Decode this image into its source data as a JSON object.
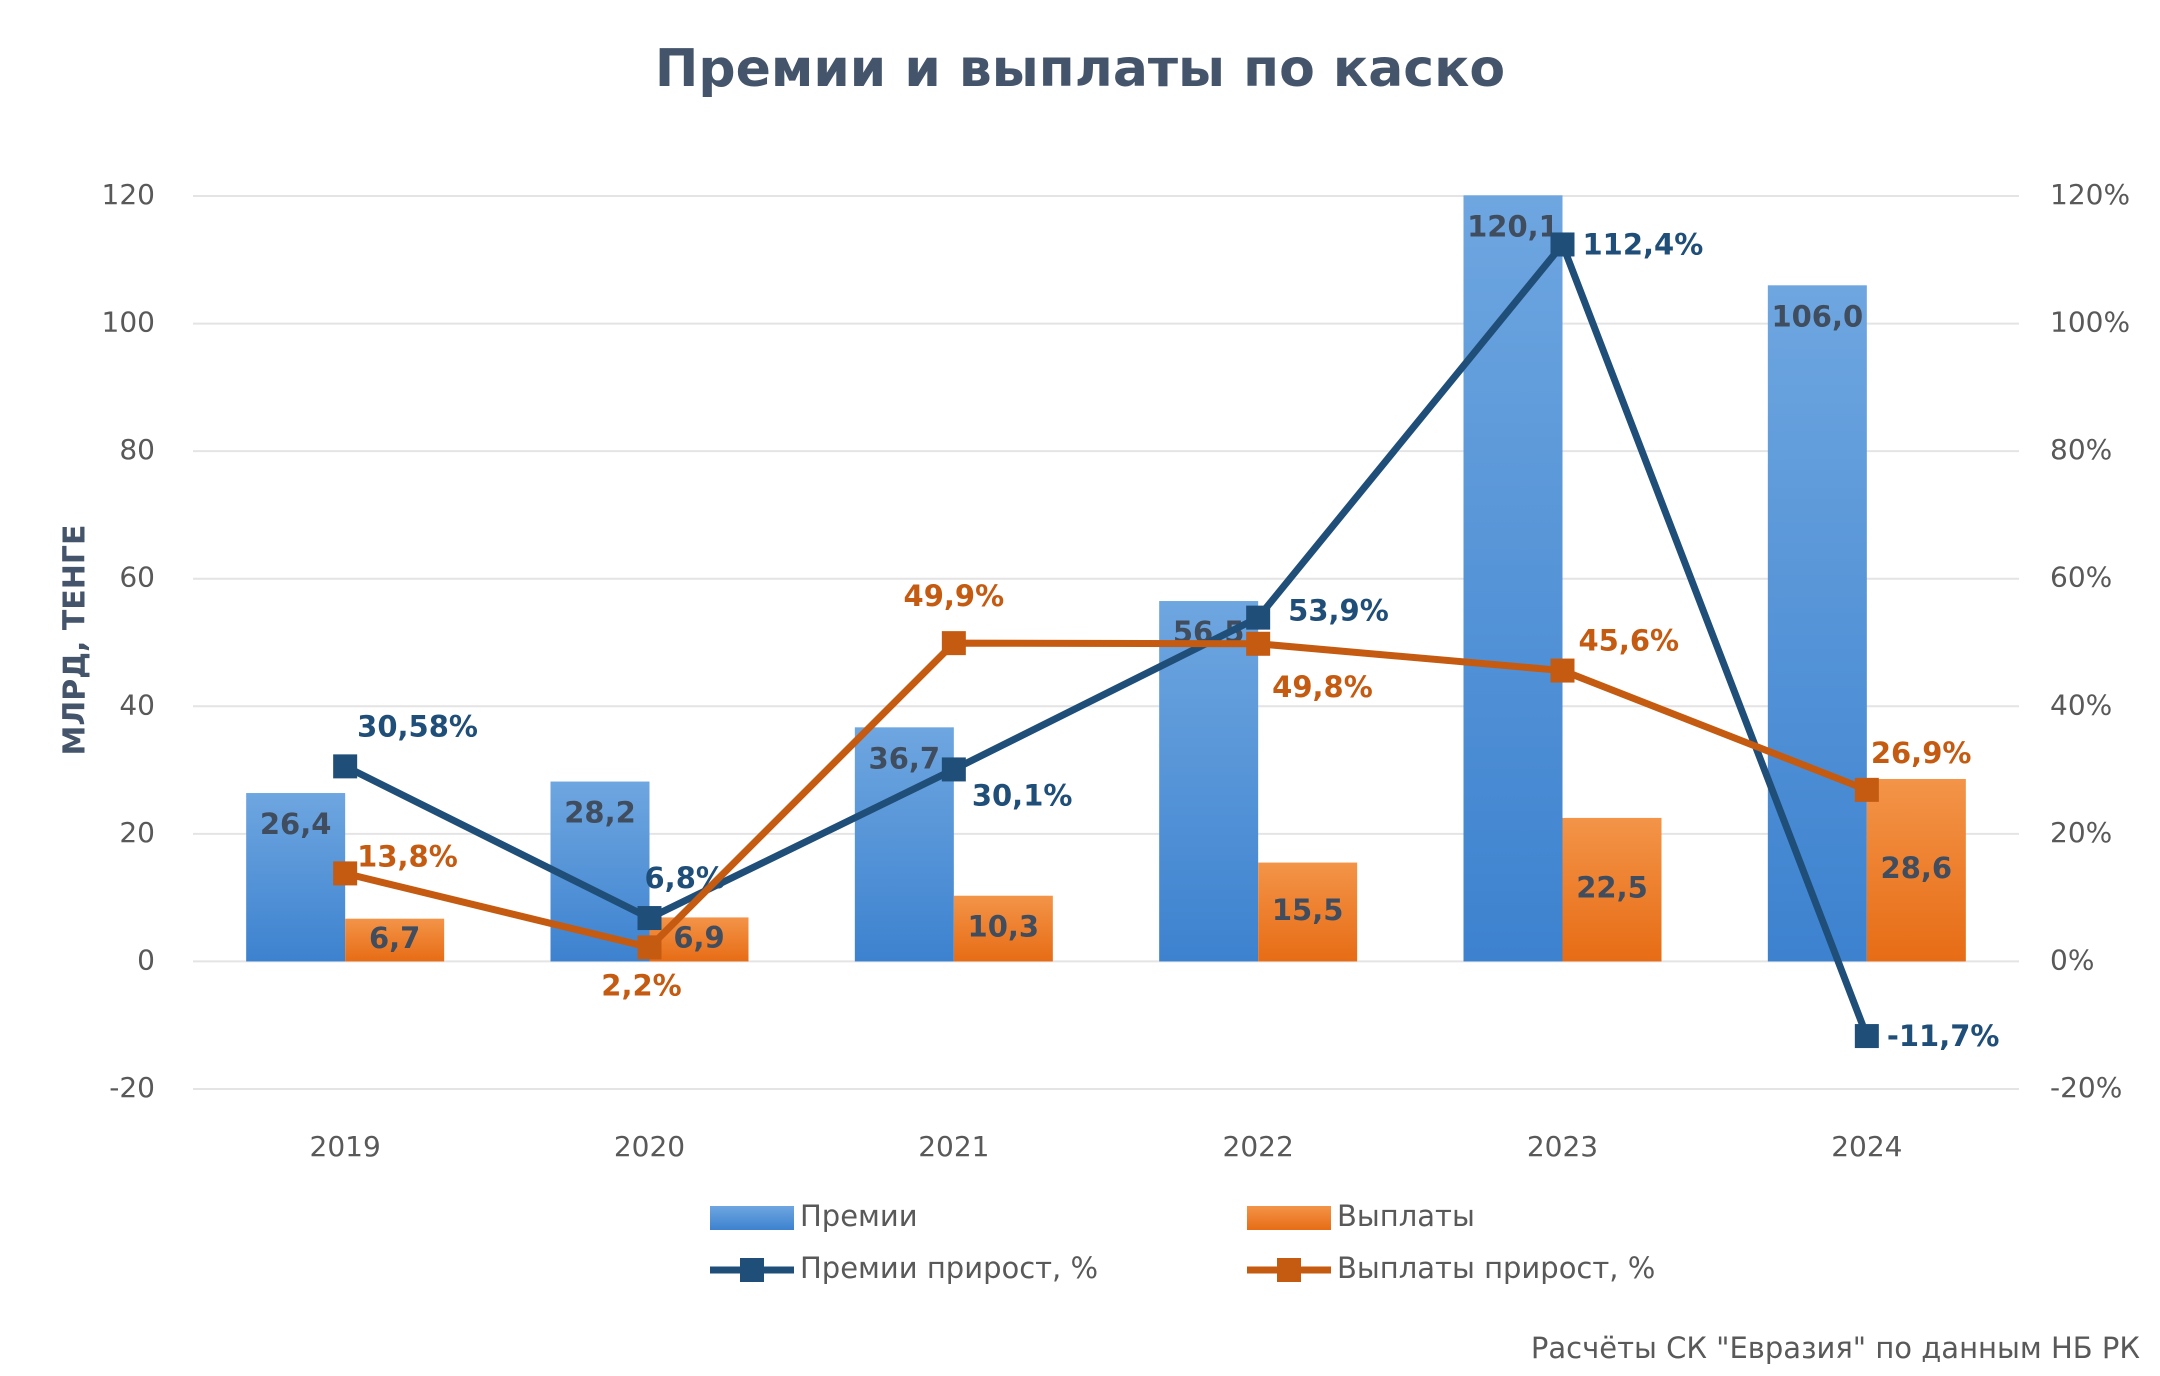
{
  "chart_data": {
    "type": "combo",
    "title": "Премии и выплаты по каско",
    "y_label": "МЛРД, ТЕНГЕ",
    "source": "Расчёты СК \"Евразия\" по данным НБ РК",
    "categories": [
      "2019",
      "2020",
      "2021",
      "2022",
      "2023",
      "2024"
    ],
    "ylim": [
      -20,
      120
    ],
    "yticks": [
      -20,
      0,
      20,
      40,
      60,
      80,
      100,
      120
    ],
    "y2lim": [
      -20,
      120
    ],
    "y2ticks": [
      {
        "value": -20,
        "label": "-20%"
      },
      {
        "value": 0,
        "label": "0%"
      },
      {
        "value": 20,
        "label": "20%"
      },
      {
        "value": 40,
        "label": "40%"
      },
      {
        "value": 60,
        "label": "60%"
      },
      {
        "value": 80,
        "label": "80%"
      },
      {
        "value": 100,
        "label": "100%"
      },
      {
        "value": 120,
        "label": "120%"
      }
    ],
    "grid": true,
    "series": [
      {
        "name": "Премии",
        "type": "bar",
        "color": "#4a8ad4",
        "values": [
          26.4,
          28.2,
          36.7,
          56.5,
          120.1,
          106.0
        ],
        "value_labels": [
          "26,4",
          "28,2",
          "36,7",
          "56,5",
          "120,1",
          "106,0"
        ]
      },
      {
        "name": "Выплаты",
        "type": "bar",
        "color": "#ed7d31",
        "values": [
          6.7,
          6.9,
          10.3,
          15.5,
          22.5,
          28.6
        ],
        "value_labels": [
          "6,7",
          "6,9",
          "10,3",
          "15,5",
          "22,5",
          "28,6"
        ]
      },
      {
        "name": "Премии прирост, %",
        "type": "line",
        "axis": "y2",
        "color": "#1f4e79",
        "values": [
          30.58,
          6.8,
          30.1,
          53.9,
          112.4,
          -11.7
        ],
        "value_labels": [
          "30,58%",
          "6,8%",
          "30,1%",
          "53,9%",
          "112,4%",
          "-11,7%"
        ]
      },
      {
        "name": "Выплаты прирост, %",
        "type": "line",
        "axis": "y2",
        "color": "#c55a11",
        "values": [
          13.8,
          2.2,
          49.9,
          49.8,
          45.6,
          26.9
        ],
        "value_labels": [
          "13,8%",
          "2,2%",
          "49,9%",
          "49,8%",
          "45,6%",
          "26,9%"
        ]
      }
    ]
  }
}
